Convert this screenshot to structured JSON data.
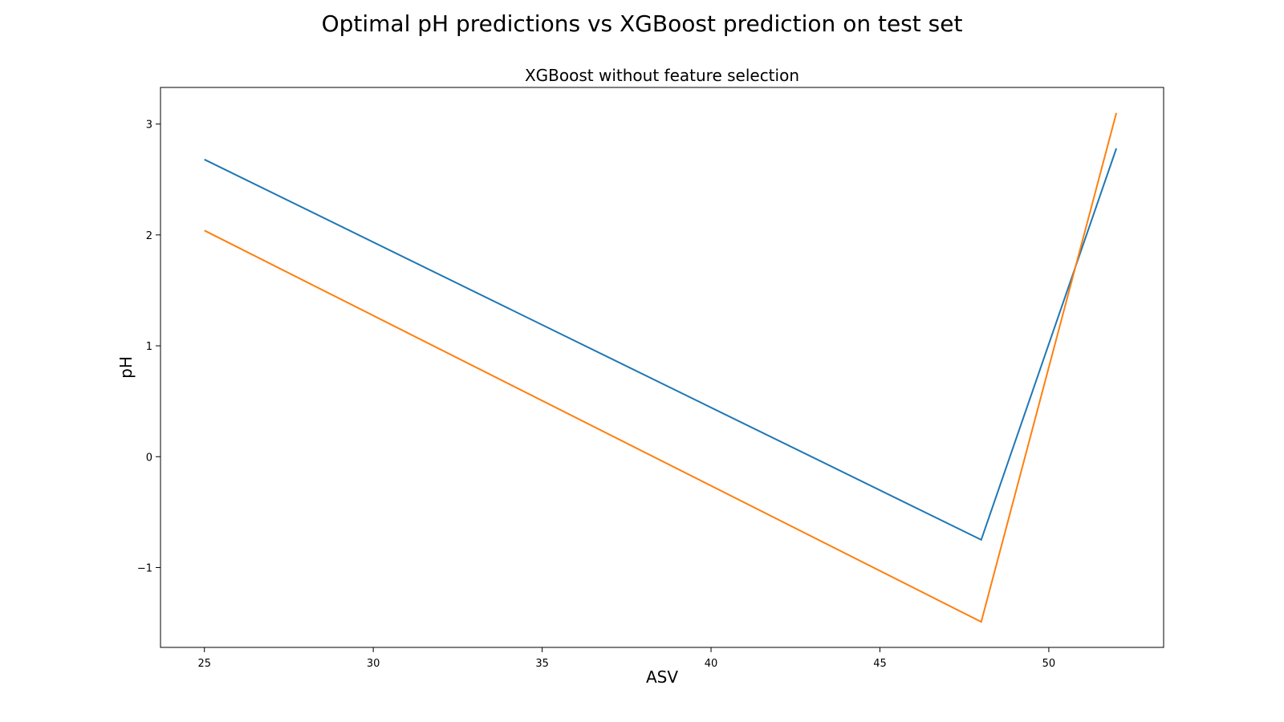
{
  "figure": {
    "suptitle": "Optimal pH predictions vs XGBoost prediction on test set"
  },
  "chart_data": {
    "type": "line",
    "title": "XGBoost without feature selection",
    "xlabel": "ASV",
    "ylabel": "pH",
    "xlim": [
      23.7,
      53.4
    ],
    "ylim": [
      -1.72,
      3.33
    ],
    "xticks": [
      25,
      30,
      35,
      40,
      45,
      50
    ],
    "yticks": [
      -1,
      0,
      1,
      2,
      3
    ],
    "xtick_labels": [
      "25",
      "30",
      "35",
      "40",
      "45",
      "50"
    ],
    "ytick_labels": [
      "−1",
      "0",
      "1",
      "2",
      "3"
    ],
    "grid": false,
    "legend": null,
    "series": [
      {
        "color": "#1f77b4",
        "x": [
          25,
          48,
          52
        ],
        "y": [
          2.68,
          -0.75,
          2.78
        ]
      },
      {
        "color": "#ff7f0e",
        "x": [
          25,
          48,
          52
        ],
        "y": [
          2.04,
          -1.49,
          3.1
        ]
      }
    ]
  }
}
